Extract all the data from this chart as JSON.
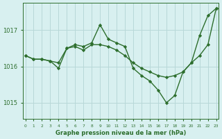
{
  "line1_x": [
    0,
    1,
    2,
    3,
    4,
    5,
    6,
    7,
    8,
    9,
    10,
    11,
    12,
    13,
    14,
    15,
    16,
    17,
    18,
    19,
    20,
    21,
    22,
    23
  ],
  "line1_y": [
    1016.3,
    1016.2,
    1016.2,
    1016.15,
    1016.1,
    1016.5,
    1016.55,
    1016.45,
    1016.6,
    1016.6,
    1016.55,
    1016.45,
    1016.3,
    1016.1,
    1015.95,
    1015.85,
    1015.75,
    1015.7,
    1015.75,
    1015.85,
    1016.1,
    1016.3,
    1016.6,
    1017.6
  ],
  "line2_x": [
    0,
    1,
    2,
    3,
    4,
    5,
    6,
    7,
    8,
    9,
    10,
    11,
    12,
    13,
    14,
    15,
    16,
    17,
    18,
    19,
    20,
    21,
    22,
    23
  ],
  "line2_y": [
    1016.3,
    1016.2,
    1016.2,
    1016.15,
    1015.95,
    1016.5,
    1016.6,
    1016.55,
    1016.65,
    1017.15,
    1016.75,
    1016.65,
    1016.55,
    1015.95,
    1015.75,
    1015.6,
    1015.35,
    1015.0,
    1015.2,
    1015.85,
    1016.1,
    1016.85,
    1017.4,
    1017.6
  ],
  "line_color": "#2d6e2d",
  "bg_color": "#d8f0f0",
  "grid_color": "#b8d8d8",
  "xlabel": "Graphe pression niveau de la mer (hPa)",
  "xlabel_color": "#2d6e2d",
  "yticks": [
    1015,
    1016,
    1017
  ],
  "xticks": [
    0,
    1,
    2,
    3,
    4,
    5,
    6,
    7,
    8,
    9,
    10,
    11,
    12,
    13,
    14,
    15,
    16,
    17,
    18,
    19,
    20,
    21,
    22,
    23
  ],
  "ylim": [
    1014.55,
    1017.75
  ],
  "xlim": [
    -0.3,
    23.3
  ],
  "marker": "D",
  "markersize": 2.2,
  "linewidth": 1.0
}
